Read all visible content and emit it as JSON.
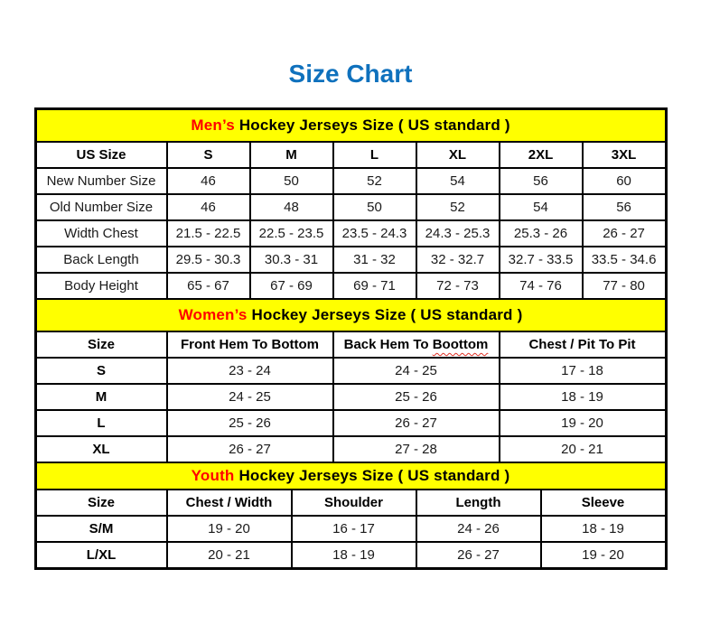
{
  "page": {
    "title": "Size Chart"
  },
  "colors": {
    "title_blue": "#0F71BD",
    "accent_red": "#FF0000",
    "section_header_bg": "#FFFF00",
    "table_border": "#000000",
    "spellcheck_squiggle_red": "#E03126"
  },
  "chart_data": [
    {
      "type": "table",
      "section": "mens",
      "title_accent": "Men’s",
      "title_rest": "Hockey Jerseys Size ( US standard )",
      "columns": [
        "US Size",
        "S",
        "M",
        "L",
        "XL",
        "2XL",
        "3XL"
      ],
      "rows": [
        [
          "New Number Size",
          "46",
          "50",
          "52",
          "54",
          "56",
          "60"
        ],
        [
          "Old Number Size",
          "46",
          "48",
          "50",
          "52",
          "54",
          "56"
        ],
        [
          "Width Chest",
          "21.5 - 22.5",
          "22.5 - 23.5",
          "23.5 - 24.3",
          "24.3 - 25.3",
          "25.3 - 26",
          "26 - 27"
        ],
        [
          "Back Length",
          "29.5 - 30.3",
          "30.3 - 31",
          "31 - 32",
          "32 - 32.7",
          "32.7 - 33.5",
          "33.5 - 34.6"
        ],
        [
          "Body Height",
          "65 - 67",
          "67 - 69",
          "69 - 71",
          "72 - 73",
          "74 - 76",
          "77 - 80"
        ]
      ]
    },
    {
      "type": "table",
      "section": "womens",
      "title_accent": "Women’s",
      "title_rest": "Hockey Jerseys Size ( US standard )",
      "columns": [
        "Size",
        "Front Hem To Bottom",
        "Back Hem To Boottom",
        "Chest / Pit To Pit"
      ],
      "spellcheck_squiggle": {
        "column": "Back Hem To Boottom",
        "word": "Boottom"
      },
      "rows": [
        [
          "S",
          "23 - 24",
          "24 - 25",
          "17 - 18"
        ],
        [
          "M",
          "24 - 25",
          "25 - 26",
          "18 - 19"
        ],
        [
          "L",
          "25 - 26",
          "26 - 27",
          "19 - 20"
        ],
        [
          "XL",
          "26 - 27",
          "27 - 28",
          "20 - 21"
        ]
      ]
    },
    {
      "type": "table",
      "section": "youth",
      "title_accent": "Youth",
      "title_rest": "Hockey Jerseys Size ( US standard )",
      "columns": [
        "Size",
        "Chest / Width",
        "Shoulder",
        "Length",
        "Sleeve"
      ],
      "rows": [
        [
          "S/M",
          "19 - 20",
          "16 - 17",
          "24 - 26",
          "18 - 19"
        ],
        [
          "L/XL",
          "20 - 21",
          "18 - 19",
          "26 - 27",
          "19 - 20"
        ]
      ]
    }
  ]
}
